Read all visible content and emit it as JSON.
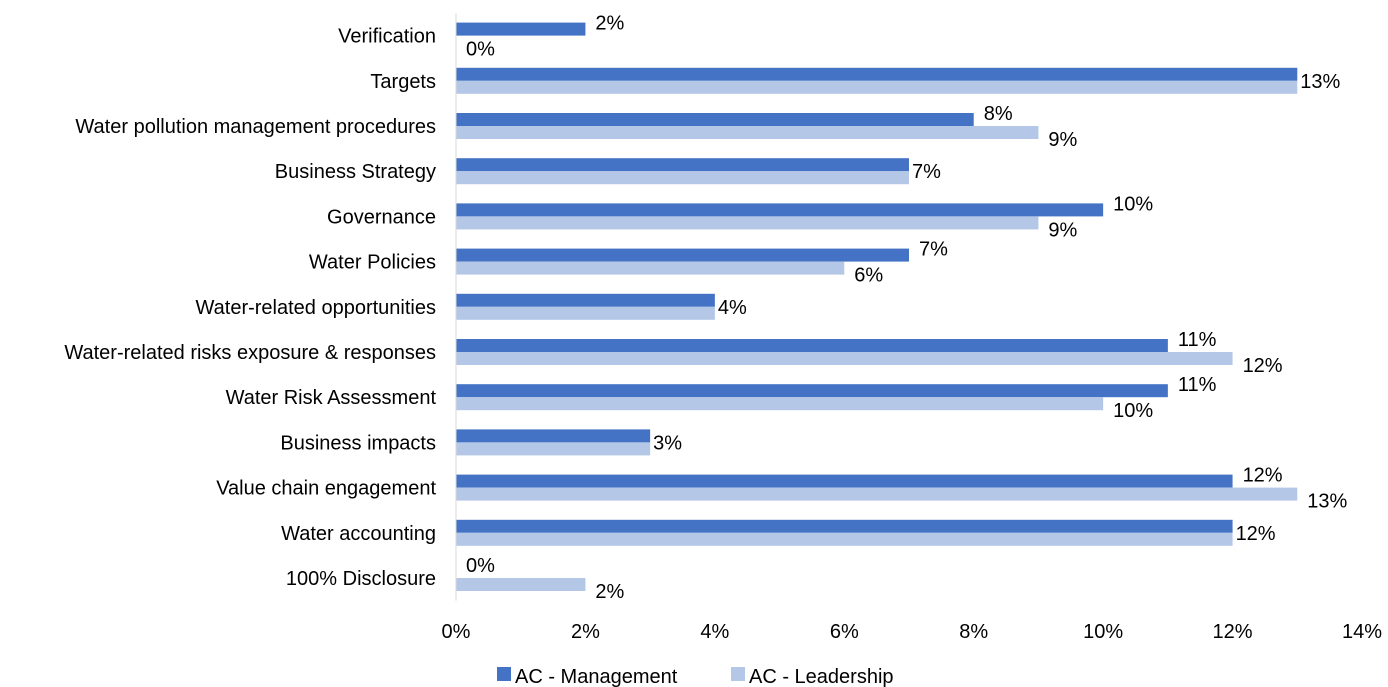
{
  "chart_data": {
    "type": "bar",
    "orientation": "horizontal",
    "title": "",
    "xlabel": "",
    "ylabel": "",
    "categories": [
      "Verification",
      "Targets",
      "Water pollution management procedures",
      "Business Strategy",
      "Governance",
      "Water Policies",
      "Water-related opportunities",
      "Water-related risks exposure & responses",
      "Water Risk Assessment",
      "Business impacts",
      "Value chain engagement",
      "Water accounting",
      "100% Disclosure"
    ],
    "series": [
      {
        "name": "AC - Management",
        "color": "#4472c4",
        "values": [
          2,
          13,
          8,
          7,
          10,
          7,
          4,
          11,
          11,
          3,
          12,
          12,
          0
        ],
        "labels": [
          "2%",
          "",
          "8%",
          "",
          "10%",
          "7%",
          "",
          "11%",
          "11%",
          "",
          "12%",
          "",
          "0%"
        ]
      },
      {
        "name": "AC - Leadership",
        "color": "#b4c7e7",
        "values": [
          0,
          13,
          9,
          7,
          9,
          6,
          4,
          12,
          10,
          3,
          13,
          12,
          2
        ],
        "labels": [
          "0%",
          "",
          "9%",
          "",
          "9%",
          "6%",
          "",
          "12%",
          "10%",
          "",
          "13%",
          "",
          "2%"
        ]
      }
    ],
    "shared_labels": [
      "",
      "13%",
      "",
      "7%",
      "",
      "",
      "4%",
      "",
      "",
      "3%",
      "",
      "12%",
      ""
    ],
    "xlim": [
      0,
      14
    ],
    "x_ticks": [
      "0%",
      "2%",
      "4%",
      "6%",
      "8%",
      "10%",
      "12%",
      "14%"
    ],
    "grid": false,
    "legend_position": "bottom"
  }
}
